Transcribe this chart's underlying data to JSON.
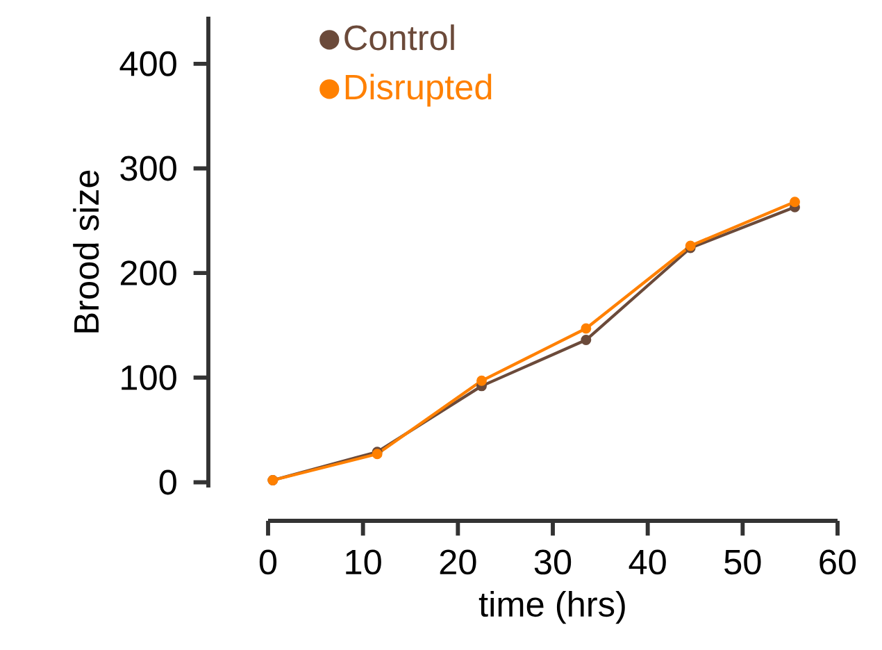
{
  "chart_data": {
    "type": "line",
    "xlabel": "time (hrs)",
    "ylabel": "Brood size",
    "x": [
      0.5,
      11.5,
      22.5,
      33.5,
      44.5,
      55.5
    ],
    "series": [
      {
        "name": "Control",
        "color": "#6b4a3a",
        "values": [
          2,
          29,
          92,
          136,
          224,
          263
        ]
      },
      {
        "name": "Disrupted",
        "color": "#ff8000",
        "values": [
          2,
          27,
          97,
          147,
          226,
          268
        ]
      }
    ],
    "xlim": [
      0,
      60
    ],
    "ylim": [
      -5,
      445
    ],
    "xticks": [
      0,
      10,
      20,
      30,
      40,
      50,
      60
    ],
    "yticks": [
      0,
      100,
      200,
      300,
      400
    ],
    "legend": "top left",
    "marker": "circle",
    "line_style": "solid",
    "grid": false
  }
}
